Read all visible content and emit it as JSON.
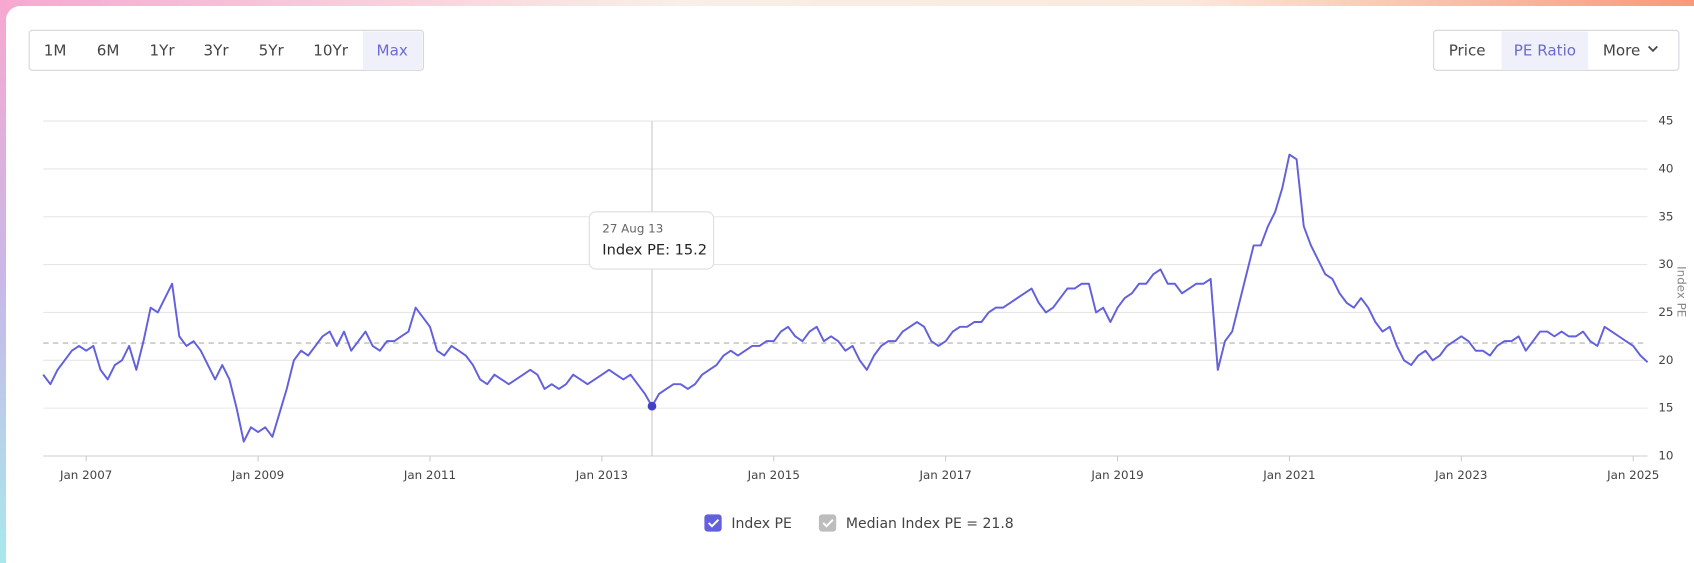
{
  "ui": {
    "range_buttons": [
      "1M",
      "6M",
      "1Yr",
      "3Yr",
      "5Yr",
      "10Yr",
      "Max"
    ],
    "view_buttons": [
      "Price",
      "PE Ratio",
      "More"
    ]
  },
  "chart_data": {
    "type": "line",
    "y_label": "Index PE",
    "x": [
      "2006-07",
      "2006-08",
      "2006-09",
      "2006-10",
      "2006-11",
      "2006-12",
      "2007-01",
      "2007-02",
      "2007-03",
      "2007-04",
      "2007-05",
      "2007-06",
      "2007-07",
      "2007-08",
      "2007-09",
      "2007-10",
      "2007-11",
      "2007-12",
      "2008-01",
      "2008-02",
      "2008-03",
      "2008-04",
      "2008-05",
      "2008-06",
      "2008-07",
      "2008-08",
      "2008-09",
      "2008-10",
      "2008-11",
      "2008-12",
      "2009-01",
      "2009-02",
      "2009-03",
      "2009-04",
      "2009-05",
      "2009-06",
      "2009-07",
      "2009-08",
      "2009-09",
      "2009-10",
      "2009-11",
      "2009-12",
      "2010-01",
      "2010-02",
      "2010-03",
      "2010-04",
      "2010-05",
      "2010-06",
      "2010-07",
      "2010-08",
      "2010-09",
      "2010-10",
      "2010-11",
      "2010-12",
      "2011-01",
      "2011-02",
      "2011-03",
      "2011-04",
      "2011-05",
      "2011-06",
      "2011-07",
      "2011-08",
      "2011-09",
      "2011-10",
      "2011-11",
      "2011-12",
      "2012-01",
      "2012-02",
      "2012-03",
      "2012-04",
      "2012-05",
      "2012-06",
      "2012-07",
      "2012-08",
      "2012-09",
      "2012-10",
      "2012-11",
      "2012-12",
      "2013-01",
      "2013-02",
      "2013-03",
      "2013-04",
      "2013-05",
      "2013-06",
      "2013-07",
      "2013-08",
      "2013-09",
      "2013-10",
      "2013-11",
      "2013-12",
      "2014-01",
      "2014-02",
      "2014-03",
      "2014-04",
      "2014-05",
      "2014-06",
      "2014-07",
      "2014-08",
      "2014-09",
      "2014-10",
      "2014-11",
      "2014-12",
      "2015-01",
      "2015-02",
      "2015-03",
      "2015-04",
      "2015-05",
      "2015-06",
      "2015-07",
      "2015-08",
      "2015-09",
      "2015-10",
      "2015-11",
      "2015-12",
      "2016-01",
      "2016-02",
      "2016-03",
      "2016-04",
      "2016-05",
      "2016-06",
      "2016-07",
      "2016-08",
      "2016-09",
      "2016-10",
      "2016-11",
      "2016-12",
      "2017-01",
      "2017-02",
      "2017-03",
      "2017-04",
      "2017-05",
      "2017-06",
      "2017-07",
      "2017-08",
      "2017-09",
      "2017-10",
      "2017-11",
      "2017-12",
      "2018-01",
      "2018-02",
      "2018-03",
      "2018-04",
      "2018-05",
      "2018-06",
      "2018-07",
      "2018-08",
      "2018-09",
      "2018-10",
      "2018-11",
      "2018-12",
      "2019-01",
      "2019-02",
      "2019-03",
      "2019-04",
      "2019-05",
      "2019-06",
      "2019-07",
      "2019-08",
      "2019-09",
      "2019-10",
      "2019-11",
      "2019-12",
      "2020-01",
      "2020-02",
      "2020-03",
      "2020-04",
      "2020-05",
      "2020-06",
      "2020-07",
      "2020-08",
      "2020-09",
      "2020-10",
      "2020-11",
      "2020-12",
      "2021-01",
      "2021-02",
      "2021-03",
      "2021-04",
      "2021-05",
      "2021-06",
      "2021-07",
      "2021-08",
      "2021-09",
      "2021-10",
      "2021-11",
      "2021-12",
      "2022-01",
      "2022-02",
      "2022-03",
      "2022-04",
      "2022-05",
      "2022-06",
      "2022-07",
      "2022-08",
      "2022-09",
      "2022-10",
      "2022-11",
      "2022-12",
      "2023-01",
      "2023-02",
      "2023-03",
      "2023-04",
      "2023-05",
      "2023-06",
      "2023-07",
      "2023-08",
      "2023-09",
      "2023-10",
      "2023-11",
      "2023-12",
      "2024-01",
      "2024-02",
      "2024-03",
      "2024-04",
      "2024-05",
      "2024-06",
      "2024-07",
      "2024-08",
      "2024-09",
      "2024-10",
      "2024-11",
      "2024-12",
      "2025-01",
      "2025-02",
      "2025-03"
    ],
    "series": [
      {
        "name": "Index PE",
        "color": "#6260dc",
        "values": [
          18.5,
          17.5,
          19,
          20,
          21,
          21.5,
          21,
          21.5,
          19,
          18,
          19.5,
          20,
          21.5,
          19,
          22,
          25.5,
          25,
          26.5,
          28,
          22.5,
          21.5,
          22,
          21,
          19.5,
          18,
          19.5,
          18,
          15,
          11.5,
          13,
          12.5,
          13,
          12,
          14.5,
          17,
          20,
          21,
          20.5,
          21.5,
          22.5,
          23,
          21.5,
          23,
          21,
          22,
          23,
          21.5,
          21,
          22,
          22,
          22.5,
          23,
          25.5,
          24.5,
          23.5,
          21,
          20.5,
          21.5,
          21,
          20.5,
          19.5,
          18,
          17.5,
          18.5,
          18,
          17.5,
          18,
          18.5,
          19,
          18.5,
          17,
          17.5,
          17,
          17.5,
          18.5,
          18,
          17.5,
          18,
          18.5,
          19,
          18.5,
          18,
          18.5,
          17.5,
          16.5,
          15.2,
          16.5,
          17,
          17.5,
          17.5,
          17,
          17.5,
          18.5,
          19,
          19.5,
          20.5,
          21,
          20.5,
          21,
          21.5,
          21.5,
          22,
          22,
          23,
          23.5,
          22.5,
          22,
          23,
          23.5,
          22,
          22.5,
          22,
          21,
          21.5,
          20,
          19,
          20.5,
          21.5,
          22,
          22,
          23,
          23.5,
          24,
          23.5,
          22,
          21.5,
          22,
          23,
          23.5,
          23.5,
          24,
          24,
          25,
          25.5,
          25.5,
          26,
          26.5,
          27,
          27.5,
          26,
          25,
          25.5,
          26.5,
          27.5,
          27.5,
          28,
          28,
          25,
          25.5,
          24,
          25.5,
          26.5,
          27,
          28,
          28,
          29,
          29.5,
          28,
          28,
          27,
          27.5,
          28,
          28,
          28.5,
          19,
          22,
          23,
          26,
          29,
          32,
          32,
          34,
          35.5,
          38,
          41.5,
          41,
          34,
          32,
          30.5,
          29,
          28.5,
          27,
          26,
          25.5,
          26.5,
          25.5,
          24,
          23,
          23.5,
          21.5,
          20,
          19.5,
          20.5,
          21,
          20,
          20.5,
          21.5,
          22,
          22.5,
          22,
          21,
          21,
          20.5,
          21.5,
          22,
          22,
          22.5,
          21,
          22,
          23,
          23,
          22.5,
          23,
          22.5,
          22.5,
          23,
          22,
          21.5,
          23.5,
          23,
          22.5,
          22,
          21.5,
          20.5,
          19.8
        ]
      }
    ],
    "median": {
      "value": 21.8,
      "label": "Median Index PE = 21.8",
      "color": "#bdbdbd"
    },
    "tooltip": {
      "date": "27 Aug 13",
      "text": "Index PE: 15.2"
    },
    "xlim": [
      "2006-07",
      "2025-03"
    ],
    "xticks": [
      {
        "value": "2007-01",
        "label": "Jan 2007"
      },
      {
        "value": "2009-01",
        "label": "Jan 2009"
      },
      {
        "value": "2011-01",
        "label": "Jan 2011"
      },
      {
        "value": "2013-01",
        "label": "Jan 2013"
      },
      {
        "value": "2015-01",
        "label": "Jan 2015"
      },
      {
        "value": "2017-01",
        "label": "Jan 2017"
      },
      {
        "value": "2019-01",
        "label": "Jan 2019"
      },
      {
        "value": "2021-01",
        "label": "Jan 2021"
      },
      {
        "value": "2023-01",
        "label": "Jan 2023"
      },
      {
        "value": "2025-01",
        "label": "Jan 2025"
      }
    ],
    "ylim": [
      10,
      45
    ],
    "yticks": [
      10,
      15,
      20,
      25,
      30,
      35,
      40,
      45
    ],
    "grid": true
  }
}
